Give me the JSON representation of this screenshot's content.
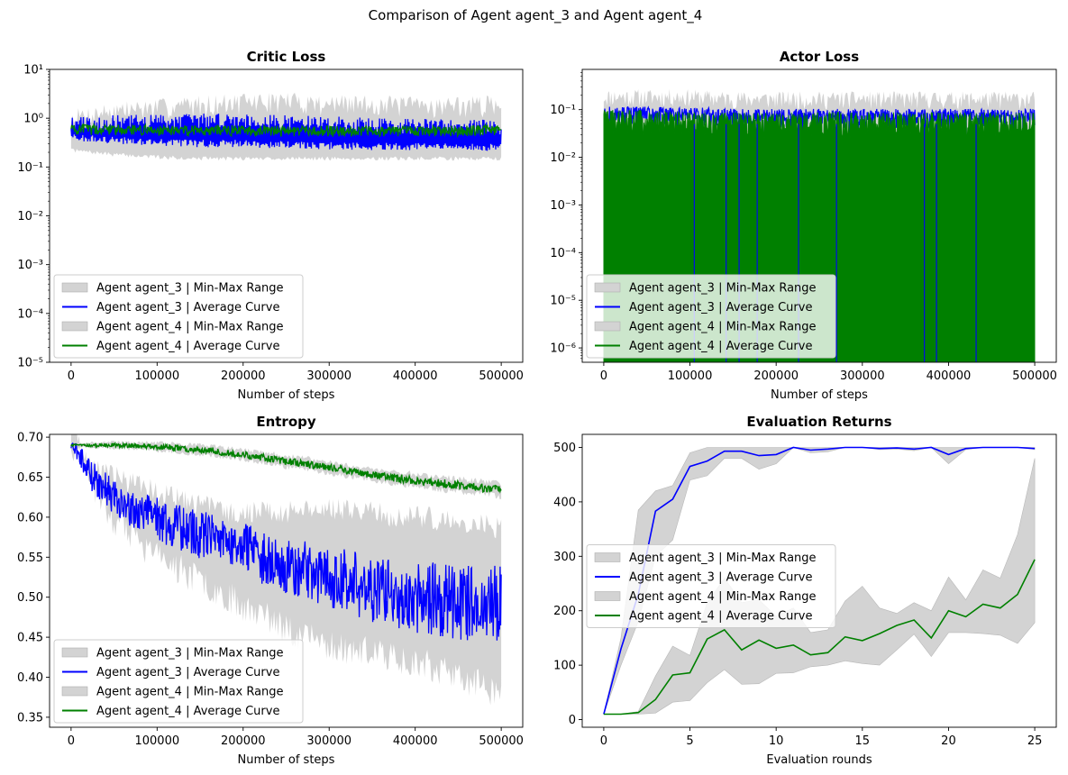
{
  "suptitle": "Comparison of Agent agent_3 and Agent agent_4",
  "colors": {
    "agent_3": "#0000ff",
    "agent_4": "#008000",
    "band": "#c8c8c8",
    "legend_band": "#d3d3d3"
  },
  "chart_data": [
    {
      "type": "line",
      "title": "Critic Loss",
      "xlabel": "Number of steps",
      "ylabel": "",
      "yscale": "log",
      "xlim": [
        -25000,
        525000
      ],
      "ylim": [
        1e-05,
        10
      ],
      "xticks": [
        0,
        100000,
        200000,
        300000,
        400000,
        500000
      ],
      "xtick_labels": [
        "0",
        "100000",
        "200000",
        "300000",
        "400000",
        "500000"
      ],
      "yticks": [
        1e-05,
        0.0001,
        0.001,
        0.01,
        0.1,
        1,
        10
      ],
      "ytick_labels": [
        "10⁻⁵",
        "10⁻⁴",
        "10⁻³",
        "10⁻²",
        "10⁻¹",
        "10⁰",
        "10¹"
      ],
      "grid": false,
      "legend_position": "lower-left",
      "legend": [
        "Agent agent_3 | Min-Max Range",
        "Agent agent_3 | Average Curve",
        "Agent agent_4 | Min-Max Range",
        "Agent agent_4 | Average Curve"
      ],
      "x": [
        0,
        50000,
        100000,
        150000,
        200000,
        250000,
        300000,
        350000,
        400000,
        450000,
        500000
      ],
      "series": [
        {
          "name": "Agent agent_3 | Average Curve",
          "upper": [
            0.9,
            1.0,
            1.05,
            1.1,
            1.1,
            1.0,
            0.95,
            0.9,
            0.85,
            0.85,
            0.8
          ],
          "lower": [
            0.4,
            0.35,
            0.32,
            0.3,
            0.3,
            0.28,
            0.27,
            0.26,
            0.26,
            0.25,
            0.25
          ],
          "range_max": [
            1.5,
            2.2,
            2.5,
            3.0,
            3.2,
            3.5,
            3.0,
            3.0,
            2.8,
            2.8,
            3.0
          ],
          "range_min": [
            0.22,
            0.18,
            0.16,
            0.15,
            0.15,
            0.15,
            0.15,
            0.15,
            0.15,
            0.15,
            0.15
          ]
        },
        {
          "name": "Agent agent_4 | Average Curve",
          "values": [
            0.6,
            0.6,
            0.58,
            0.58,
            0.57,
            0.56,
            0.56,
            0.56,
            0.56,
            0.56,
            0.6
          ]
        }
      ]
    },
    {
      "type": "line",
      "title": "Actor Loss",
      "xlabel": "Number of steps",
      "ylabel": "",
      "yscale": "log",
      "xlim": [
        -25000,
        525000
      ],
      "ylim": [
        5e-07,
        0.7
      ],
      "xticks": [
        0,
        100000,
        200000,
        300000,
        400000,
        500000
      ],
      "xtick_labels": [
        "0",
        "100000",
        "200000",
        "300000",
        "400000",
        "500000"
      ],
      "yticks": [
        1e-06,
        1e-05,
        0.0001,
        0.001,
        0.01,
        0.1
      ],
      "ytick_labels": [
        "10⁻⁶",
        "10⁻⁵",
        "10⁻⁴",
        "10⁻³",
        "10⁻²",
        "10⁻¹"
      ],
      "grid": false,
      "legend_position": "lower-left",
      "legend": [
        "Agent agent_3 | Min-Max Range",
        "Agent agent_3 | Average Curve",
        "Agent agent_4 | Min-Max Range",
        "Agent agent_4 | Average Curve"
      ],
      "x": [
        0,
        50000,
        100000,
        150000,
        200000,
        250000,
        300000,
        350000,
        400000,
        450000,
        500000
      ],
      "series": [
        {
          "name": "Agent agent_3 | Average Curve",
          "upper": [
            0.1,
            0.1,
            0.1,
            0.09,
            0.09,
            0.09,
            0.09,
            0.09,
            0.09,
            0.09,
            0.09
          ]
        },
        {
          "name": "Agent agent_4 | Average Curve",
          "upper": [
            0.09,
            0.09,
            0.08,
            0.08,
            0.08,
            0.08,
            0.08,
            0.08,
            0.08,
            0.08,
            0.08
          ]
        }
      ]
    },
    {
      "type": "line",
      "title": "Entropy",
      "xlabel": "Number of steps",
      "ylabel": "",
      "xlim": [
        -25000,
        525000
      ],
      "ylim": [
        0.3375,
        0.7035
      ],
      "xticks": [
        0,
        100000,
        200000,
        300000,
        400000,
        500000
      ],
      "xtick_labels": [
        "0",
        "100000",
        "200000",
        "300000",
        "400000",
        "500000"
      ],
      "yticks": [
        0.35,
        0.4,
        0.45,
        0.5,
        0.55,
        0.6,
        0.65,
        0.7
      ],
      "ytick_labels": [
        "0.35",
        "0.40",
        "0.45",
        "0.50",
        "0.55",
        "0.60",
        "0.65",
        "0.70"
      ],
      "grid": false,
      "legend_position": "lower-left",
      "legend": [
        "Agent agent_3 | Min-Max Range",
        "Agent agent_3 | Average Curve",
        "Agent agent_4 | Min-Max Range",
        "Agent agent_4 | Average Curve"
      ],
      "x": [
        0,
        10000,
        25000,
        50000,
        75000,
        100000,
        150000,
        200000,
        250000,
        300000,
        350000,
        400000,
        450000,
        500000
      ],
      "series": [
        {
          "name": "Agent agent_3 | Average Curve",
          "values": [
            0.69,
            0.68,
            0.65,
            0.625,
            0.608,
            0.597,
            0.578,
            0.56,
            0.54,
            0.525,
            0.51,
            0.5,
            0.495,
            0.49
          ],
          "amplitude": [
            0.003,
            0.01,
            0.014,
            0.016,
            0.018,
            0.02,
            0.022,
            0.024,
            0.026,
            0.028,
            0.03,
            0.032,
            0.034,
            0.036
          ],
          "range_max": [
            0.692,
            0.69,
            0.675,
            0.665,
            0.655,
            0.645,
            0.63,
            0.62,
            0.62,
            0.625,
            0.62,
            0.615,
            0.61,
            0.6
          ],
          "range_min": [
            0.688,
            0.67,
            0.62,
            0.575,
            0.55,
            0.53,
            0.5,
            0.47,
            0.44,
            0.42,
            0.41,
            0.4,
            0.38,
            0.36
          ]
        },
        {
          "name": "Agent agent_4 | Average Curve",
          "values": [
            0.69,
            0.69,
            0.69,
            0.69,
            0.689,
            0.688,
            0.684,
            0.678,
            0.67,
            0.662,
            0.653,
            0.646,
            0.64,
            0.634
          ],
          "amplitude": [
            0.001,
            0.001,
            0.0015,
            0.002,
            0.002,
            0.0025,
            0.003,
            0.003,
            0.0035,
            0.0035,
            0.0035,
            0.004,
            0.004,
            0.004
          ]
        }
      ]
    },
    {
      "type": "line",
      "title": "Evaluation Returns",
      "xlabel": "Evaluation rounds",
      "ylabel": "",
      "xlim": [
        -1.25,
        26.25
      ],
      "ylim": [
        -14,
        524
      ],
      "xticks": [
        0,
        5,
        10,
        15,
        20,
        25
      ],
      "xtick_labels": [
        "0",
        "5",
        "10",
        "15",
        "20",
        "25"
      ],
      "yticks": [
        0,
        100,
        200,
        300,
        400,
        500
      ],
      "ytick_labels": [
        "0",
        "100",
        "200",
        "300",
        "400",
        "500"
      ],
      "grid": false,
      "legend_position": "center-left",
      "legend": [
        "Agent agent_3 | Min-Max Range",
        "Agent agent_3 | Average Curve",
        "Agent agent_4 | Min-Max Range",
        "Agent agent_4 | Average Curve"
      ],
      "x": [
        0,
        1,
        2,
        3,
        4,
        5,
        6,
        7,
        8,
        9,
        10,
        11,
        12,
        13,
        14,
        15,
        16,
        17,
        18,
        19,
        20,
        21,
        22,
        23,
        24,
        25
      ],
      "series": [
        {
          "name": "Agent agent_3 | Average Curve",
          "values": [
            10,
            130,
            230,
            383,
            405,
            465,
            475,
            493,
            493,
            485,
            487,
            500,
            495,
            497,
            500,
            500,
            498,
            499,
            497,
            500,
            487,
            498,
            500,
            500,
            500,
            498
          ],
          "max": [
            10,
            150,
            385,
            420,
            430,
            490,
            500,
            500,
            500,
            500,
            500,
            500,
            500,
            500,
            500,
            500,
            500,
            500,
            500,
            500,
            500,
            500,
            500,
            500,
            500,
            500
          ],
          "min": [
            10,
            100,
            180,
            300,
            330,
            440,
            448,
            480,
            480,
            460,
            470,
            500,
            490,
            492,
            500,
            500,
            496,
            497,
            494,
            500,
            470,
            496,
            500,
            500,
            500,
            496
          ]
        },
        {
          "name": "Agent agent_4 | Average Curve",
          "values": [
            10,
            10,
            13,
            37,
            82,
            86,
            148,
            165,
            128,
            146,
            131,
            137,
            119,
            123,
            152,
            145,
            158,
            173,
            183,
            150,
            200,
            189,
            212,
            205,
            230,
            294
          ],
          "max": [
            10,
            10,
            15,
            80,
            135,
            118,
            215,
            260,
            215,
            220,
            190,
            205,
            160,
            165,
            218,
            245,
            205,
            195,
            215,
            200,
            262,
            220,
            275,
            260,
            340,
            480
          ],
          "min": [
            10,
            10,
            10,
            12,
            32,
            35,
            68,
            92,
            65,
            66,
            85,
            86,
            97,
            100,
            108,
            103,
            100,
            128,
            157,
            116,
            160,
            160,
            158,
            155,
            140,
            178
          ]
        }
      ]
    }
  ]
}
